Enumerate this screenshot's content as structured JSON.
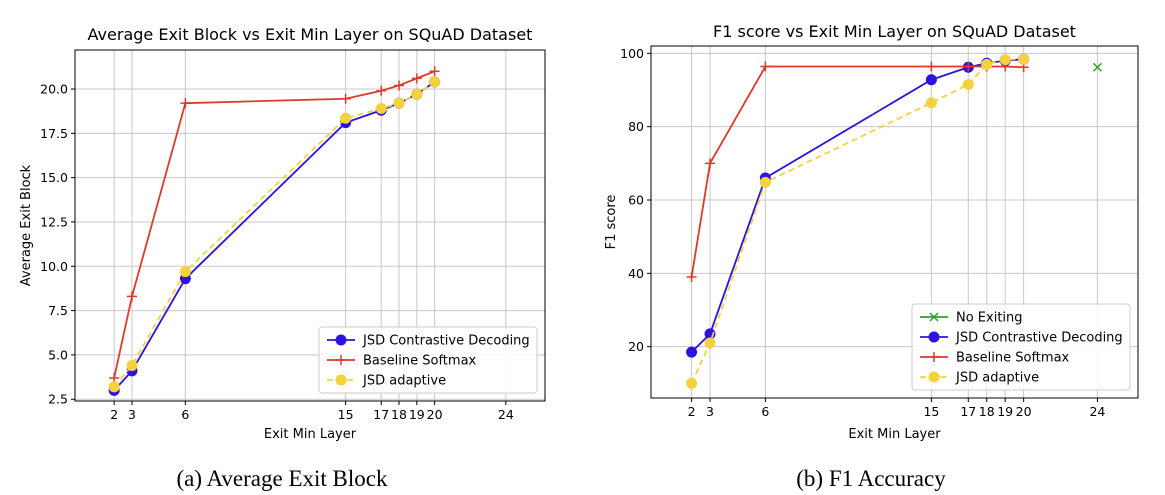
{
  "captions": [
    "(a) Average Exit Block",
    "(b) F1 Accuracy"
  ],
  "colors": {
    "no_exiting": "#2ca02c",
    "jsd_contrastive": "#2b12e0",
    "baseline_softmax": "#dd3a2c",
    "jsd_adaptive": "#f4d23c",
    "grid": "#c8c8c8"
  },
  "chart_data": [
    {
      "type": "line",
      "title": "Average Exit Block vs Exit Min Layer on SQuAD Dataset",
      "xlabel": "Exit Min Layer",
      "ylabel": "Average Exit Block",
      "xlim": [
        -0.2,
        26.2
      ],
      "ylim": [
        2.4,
        22.2
      ],
      "xticks": [
        2,
        3,
        6,
        15,
        17,
        18,
        19,
        20,
        24
      ],
      "yticks": [
        2.5,
        5.0,
        7.5,
        10.0,
        12.5,
        15.0,
        17.5,
        20.0
      ],
      "ytick_labels": [
        "2.5",
        "5.0",
        "7.5",
        "10.0",
        "12.5",
        "15.0",
        "17.5",
        "20.0"
      ],
      "grid": true,
      "legend_position": "lower-right",
      "series": [
        {
          "name": "JSD Contrastive Decoding",
          "color": "#2b12e0",
          "marker": "o",
          "dash": "solid",
          "x": [
            2,
            3,
            6,
            15,
            17,
            18,
            19,
            20
          ],
          "y": [
            3.0,
            4.1,
            9.3,
            18.1,
            18.8,
            19.2,
            19.7,
            20.4
          ]
        },
        {
          "name": "Baseline Softmax",
          "color": "#dd3a2c",
          "marker": "+",
          "dash": "solid",
          "x": [
            2,
            3,
            6,
            15,
            17,
            18,
            19,
            20
          ],
          "y": [
            3.7,
            8.3,
            19.2,
            19.45,
            19.9,
            20.2,
            20.6,
            21.0
          ]
        },
        {
          "name": "JSD adaptive",
          "color": "#f4d23c",
          "marker": "o",
          "dash": "dashed",
          "x": [
            2,
            3,
            6,
            15,
            17,
            18,
            19,
            20
          ],
          "y": [
            3.2,
            4.4,
            9.7,
            18.35,
            18.9,
            19.2,
            19.7,
            20.4
          ]
        }
      ]
    },
    {
      "type": "line",
      "title": "F1 score vs Exit Min Layer on SQuAD Dataset",
      "xlabel": "Exit Min Layer",
      "ylabel": "F1 score",
      "xlim": [
        -0.2,
        26.2
      ],
      "ylim": [
        6.0,
        102.0
      ],
      "xticks": [
        2,
        3,
        6,
        15,
        17,
        18,
        19,
        20,
        24
      ],
      "yticks": [
        20,
        40,
        60,
        80,
        100
      ],
      "ytick_labels": [
        "20",
        "40",
        "60",
        "80",
        "100"
      ],
      "grid": true,
      "legend_position": "lower-right",
      "series": [
        {
          "name": "No Exiting",
          "color": "#2ca02c",
          "marker": "x",
          "dash": "solid",
          "x": [
            24
          ],
          "y": [
            96.2
          ]
        },
        {
          "name": "JSD Contrastive Decoding",
          "color": "#2b12e0",
          "marker": "o",
          "dash": "solid",
          "x": [
            2,
            3,
            6,
            15,
            17,
            18,
            19,
            20
          ],
          "y": [
            18.5,
            23.5,
            66.0,
            92.8,
            96.2,
            97.3,
            98.0,
            98.4
          ]
        },
        {
          "name": "Baseline Softmax",
          "color": "#dd3a2c",
          "marker": "+",
          "dash": "solid",
          "x": [
            2,
            3,
            6,
            15,
            17,
            18,
            19,
            20
          ],
          "y": [
            39.0,
            70.0,
            96.4,
            96.4,
            96.4,
            96.4,
            96.4,
            96.2
          ]
        },
        {
          "name": "JSD adaptive",
          "color": "#f4d23c",
          "marker": "o",
          "dash": "dashed",
          "x": [
            2,
            3,
            6,
            15,
            17,
            18,
            19,
            20
          ],
          "y": [
            10.0,
            21.0,
            64.8,
            86.5,
            91.5,
            97.0,
            98.3,
            98.4
          ]
        }
      ]
    }
  ]
}
